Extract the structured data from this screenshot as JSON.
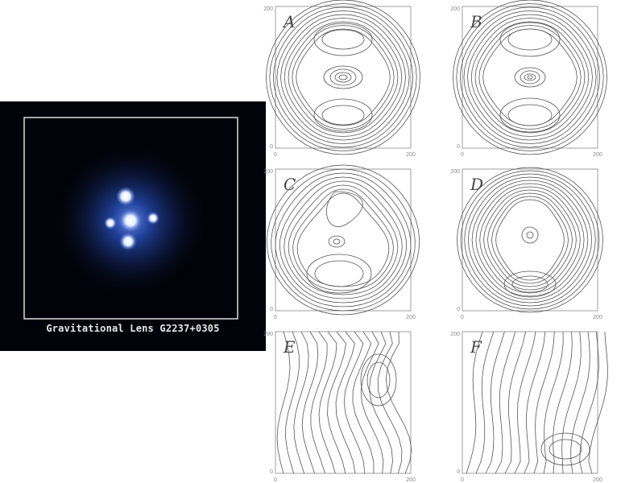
{
  "photo": {
    "caption": "Gravitational Lens G2237+0305",
    "colors": {
      "background": "#02030a",
      "glow": "#2a55c8",
      "core": "#ffffff",
      "frame": "#dcdcdc"
    }
  },
  "plots": [
    {
      "letter": "A",
      "x_ticks": [
        "0",
        "200"
      ],
      "y_ticks": [
        "0",
        "200"
      ]
    },
    {
      "letter": "B",
      "x_ticks": [
        "0",
        "200"
      ],
      "y_ticks": [
        "0",
        "200"
      ]
    },
    {
      "letter": "C",
      "x_ticks": [
        "0",
        "200"
      ],
      "y_ticks": [
        "0",
        "200"
      ]
    },
    {
      "letter": "D",
      "x_ticks": [
        "0",
        "200"
      ],
      "y_ticks": [
        "0",
        "200"
      ]
    },
    {
      "letter": "E",
      "x_ticks": [
        "0",
        "200"
      ],
      "y_ticks": [
        "0",
        "200"
      ]
    },
    {
      "letter": "F",
      "x_ticks": [
        "0",
        "200"
      ],
      "y_ticks": [
        "0",
        "200"
      ]
    }
  ],
  "colors": {
    "contour": "#555555",
    "axis": "#888888",
    "letter": "#444444"
  }
}
